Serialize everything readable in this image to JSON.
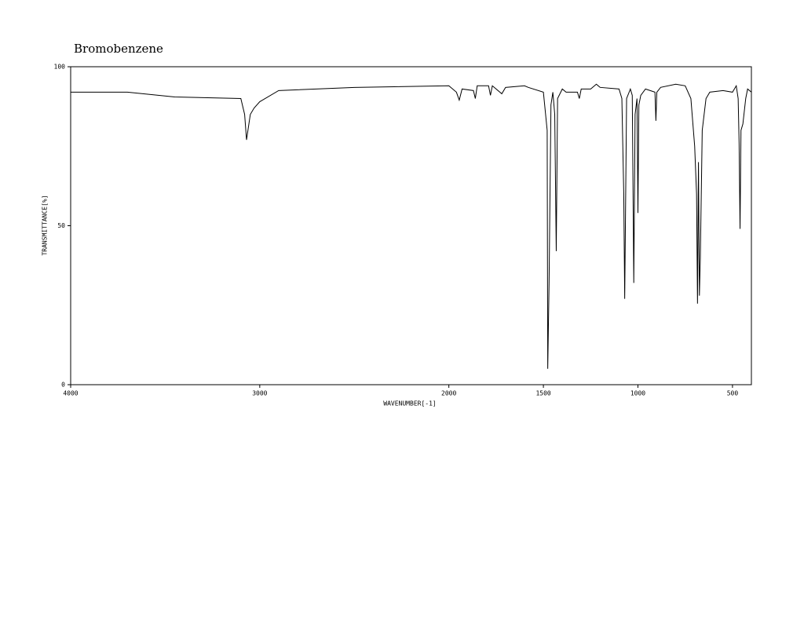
{
  "chart_data": {
    "type": "line",
    "title": "Bromobenzene",
    "x_label": "WAVENUMBER[-1]",
    "y_label": "TRANSMITTANCE[%]",
    "xlim": [
      4000,
      400
    ],
    "ylim": [
      0,
      100
    ],
    "xticks": [
      4000,
      3000,
      2000,
      1500,
      1000,
      500
    ],
    "yticks": [
      0,
      50,
      100
    ],
    "series": [
      {
        "color": "#000000",
        "x": [
          4000,
          3700,
          3450,
          3100,
          3080,
          3070,
          3050,
          3030,
          3000,
          2900,
          2500,
          2000,
          1960,
          1945,
          1930,
          1870,
          1860,
          1850,
          1790,
          1780,
          1770,
          1720,
          1700,
          1600,
          1580,
          1500,
          1480,
          1477,
          1470,
          1460,
          1450,
          1440,
          1432,
          1425,
          1400,
          1380,
          1320,
          1310,
          1300,
          1250,
          1220,
          1200,
          1100,
          1085,
          1075,
          1070,
          1060,
          1040,
          1030,
          1022,
          1015,
          1005,
          1000,
          995,
          985,
          960,
          910,
          905,
          900,
          880,
          800,
          750,
          720,
          700,
          690,
          685,
          680,
          675,
          670,
          660,
          640,
          620,
          550,
          500,
          480,
          470,
          465,
          460,
          455,
          445,
          430,
          420,
          400
        ],
        "values": [
          92,
          92,
          90.5,
          90,
          85,
          77,
          85,
          87,
          89,
          92.5,
          93.5,
          94,
          92,
          89.5,
          93,
          92.5,
          90,
          94,
          94,
          91,
          94,
          91.5,
          93.5,
          94,
          93.5,
          92,
          80,
          5,
          32,
          88,
          92,
          85,
          42,
          90,
          93,
          92,
          92,
          90,
          93,
          93,
          94.5,
          93.5,
          93,
          90,
          60,
          27,
          90,
          93,
          91,
          32,
          85,
          90,
          54,
          88,
          91,
          93,
          92,
          83,
          92,
          93.5,
          94.5,
          94,
          90,
          75,
          60,
          25.5,
          70,
          28,
          40,
          80,
          90,
          92,
          92.5,
          92,
          94,
          90,
          76,
          49,
          80,
          82,
          90,
          93,
          92
        ]
      }
    ]
  }
}
